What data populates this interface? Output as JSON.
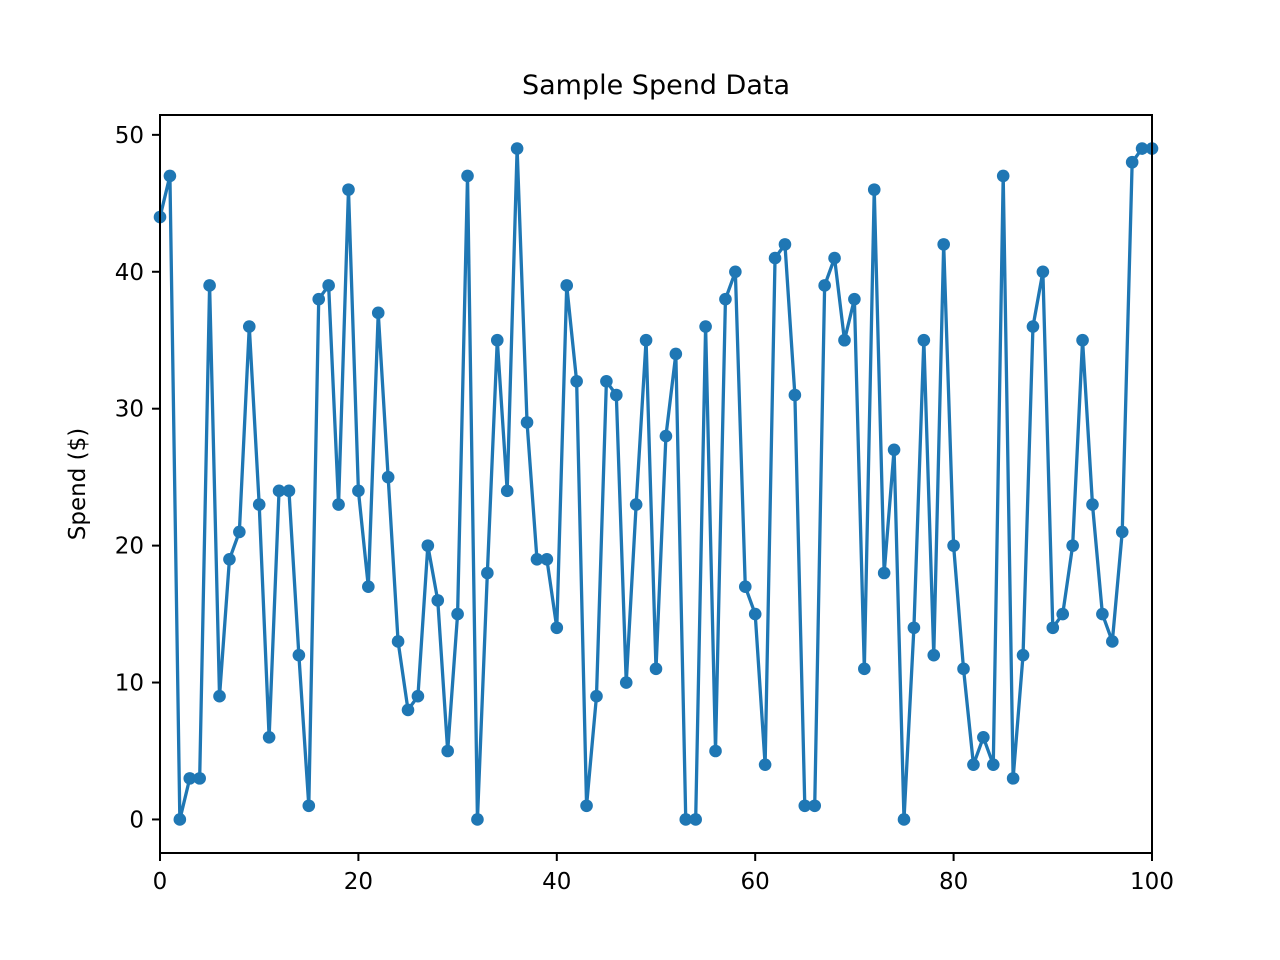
{
  "chart_data": {
    "type": "line",
    "title": "Sample Spend Data",
    "xlabel": "",
    "ylabel": "Spend ($)",
    "x_start": 0,
    "x_step": 1,
    "values": [
      44,
      47,
      0,
      3,
      3,
      39,
      9,
      19,
      21,
      36,
      23,
      6,
      24,
      24,
      12,
      1,
      38,
      39,
      23,
      46,
      24,
      17,
      37,
      25,
      13,
      8,
      9,
      20,
      16,
      5,
      15,
      47,
      0,
      18,
      35,
      24,
      49,
      29,
      19,
      19,
      14,
      39,
      32,
      1,
      9,
      32,
      31,
      10,
      23,
      35,
      11,
      28,
      34,
      0,
      0,
      36,
      5,
      38,
      40,
      17,
      15,
      4,
      41,
      42,
      31,
      1,
      1,
      39,
      41,
      35,
      38,
      11,
      46,
      18,
      27,
      0,
      14,
      35,
      12,
      42,
      20,
      11,
      4,
      6,
      4,
      47,
      3,
      12,
      36,
      40,
      14,
      15,
      20,
      35,
      23,
      15,
      13,
      21,
      48,
      49,
      49
    ],
    "xlim": [
      0,
      100
    ],
    "ylim": [
      -2.45,
      51.45
    ],
    "xticks": [
      0,
      20,
      40,
      60,
      80,
      100
    ],
    "yticks": [
      0,
      10,
      20,
      30,
      40,
      50
    ],
    "line_color": "#1f77b4",
    "marker": "o",
    "marker_radius": 6.3,
    "line_width": 3.3,
    "grid": false,
    "legend_position": "none"
  }
}
